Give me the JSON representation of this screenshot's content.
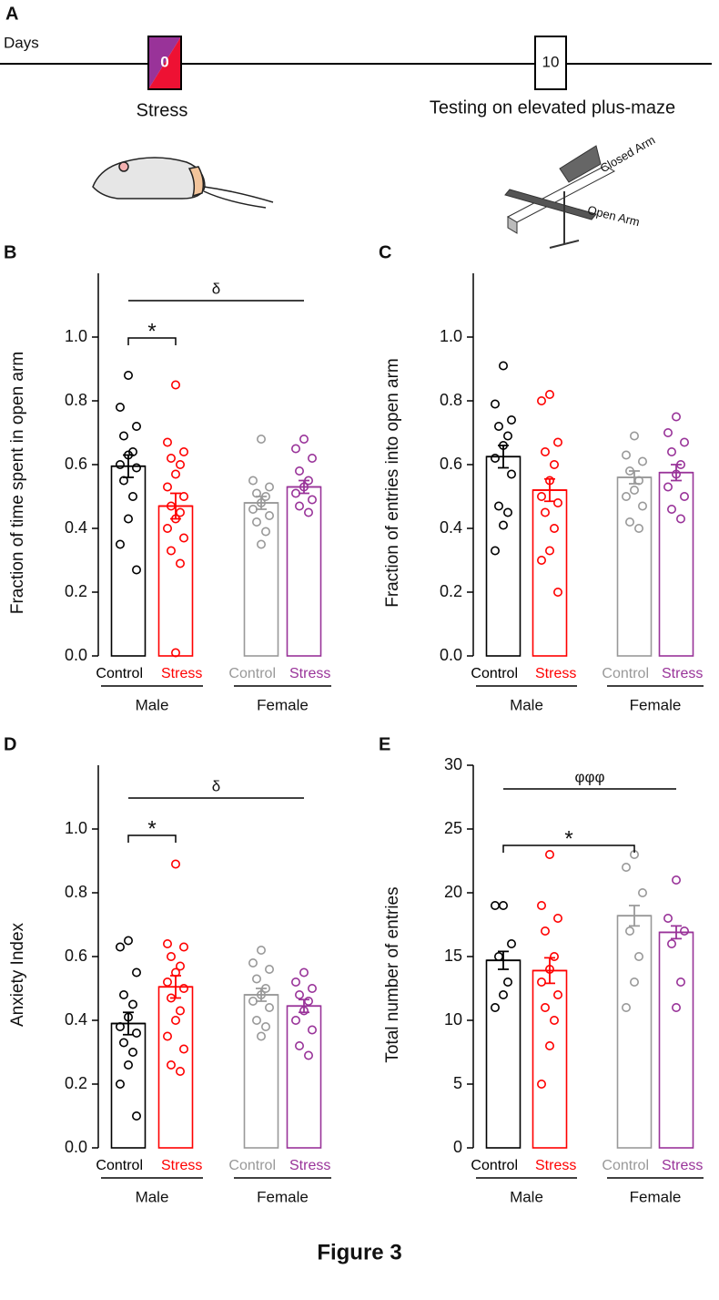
{
  "panel_a": {
    "label": "A",
    "axis_label": "Days",
    "day_start": "0",
    "day_test": "10",
    "stress_label": "Stress",
    "test_label": "Testing on elevated plus-maze",
    "closed_arm": "Closed Arm",
    "open_arm": "Open Arm"
  },
  "figure_title": "Figure 3",
  "chart_data": [
    {
      "type": "bar",
      "panel": "B",
      "ylabel": "Fraction of time spent in open arm",
      "categories": [
        "Control",
        "Stress",
        "Control",
        "Stress"
      ],
      "groups": [
        "Male",
        "Female"
      ],
      "colors": [
        "#000000",
        "#ff0000",
        "#999999",
        "#993399"
      ],
      "values": [
        0.595,
        0.47,
        0.48,
        0.53
      ],
      "errors": [
        0.035,
        0.04,
        0.02,
        0.02
      ],
      "points": [
        [
          0.88,
          0.78,
          0.72,
          0.69,
          0.64,
          0.63,
          0.6,
          0.59,
          0.55,
          0.5,
          0.43,
          0.35,
          0.27
        ],
        [
          0.85,
          0.67,
          0.64,
          0.62,
          0.6,
          0.57,
          0.53,
          0.5,
          0.47,
          0.45,
          0.43,
          0.4,
          0.37,
          0.33,
          0.29,
          0.01
        ],
        [
          0.68,
          0.55,
          0.53,
          0.51,
          0.5,
          0.48,
          0.46,
          0.44,
          0.42,
          0.39,
          0.35
        ],
        [
          0.68,
          0.65,
          0.62,
          0.58,
          0.55,
          0.53,
          0.51,
          0.49,
          0.47,
          0.45
        ]
      ],
      "ylim": [
        0,
        1.2
      ],
      "yticks": [
        {
          "value": 0,
          "label": "0.0"
        },
        0.2,
        0.4,
        0.6,
        0.8,
        {
          "value": 1,
          "label": "1.0"
        }
      ],
      "annotations": [
        {
          "text": "δ"
        },
        {
          "text": "*"
        }
      ]
    },
    {
      "type": "bar",
      "panel": "C",
      "ylabel": "Fraction of entries into open arm",
      "categories": [
        "Control",
        "Stress",
        "Control",
        "Stress"
      ],
      "groups": [
        "Male",
        "Female"
      ],
      "colors": [
        "#000000",
        "#ff0000",
        "#999999",
        "#993399"
      ],
      "values": [
        0.625,
        0.52,
        0.56,
        0.575
      ],
      "errors": [
        0.035,
        0.035,
        0.02,
        0.025
      ],
      "points": [
        [
          0.91,
          0.79,
          0.74,
          0.72,
          0.69,
          0.66,
          0.62,
          0.57,
          0.47,
          0.45,
          0.41,
          0.33
        ],
        [
          0.82,
          0.8,
          0.67,
          0.64,
          0.6,
          0.55,
          0.5,
          0.48,
          0.45,
          0.4,
          0.33,
          0.3,
          0.2
        ],
        [
          0.69,
          0.63,
          0.61,
          0.58,
          0.55,
          0.52,
          0.5,
          0.47,
          0.42,
          0.4
        ],
        [
          0.75,
          0.7,
          0.67,
          0.64,
          0.6,
          0.57,
          0.53,
          0.5,
          0.46,
          0.43
        ]
      ],
      "ylim": [
        0,
        1.2
      ],
      "yticks": [
        {
          "value": 0,
          "label": "0.0"
        },
        0.2,
        0.4,
        0.6,
        0.8,
        {
          "value": 1,
          "label": "1.0"
        }
      ],
      "annotations": []
    },
    {
      "type": "bar",
      "panel": "D",
      "ylabel": "Anxiety Index",
      "categories": [
        "Control",
        "Stress",
        "Control",
        "Stress"
      ],
      "groups": [
        "Male",
        "Female"
      ],
      "colors": [
        "#000000",
        "#ff0000",
        "#999999",
        "#993399"
      ],
      "values": [
        0.39,
        0.505,
        0.48,
        0.445
      ],
      "errors": [
        0.035,
        0.035,
        0.02,
        0.02
      ],
      "points": [
        [
          0.65,
          0.63,
          0.55,
          0.48,
          0.45,
          0.41,
          0.38,
          0.36,
          0.33,
          0.3,
          0.26,
          0.2,
          0.1
        ],
        [
          0.89,
          0.64,
          0.63,
          0.6,
          0.57,
          0.55,
          0.52,
          0.5,
          0.47,
          0.43,
          0.4,
          0.35,
          0.31,
          0.26,
          0.24
        ],
        [
          0.62,
          0.58,
          0.56,
          0.53,
          0.5,
          0.48,
          0.46,
          0.44,
          0.4,
          0.38,
          0.35
        ],
        [
          0.55,
          0.52,
          0.5,
          0.48,
          0.46,
          0.43,
          0.4,
          0.37,
          0.32,
          0.29
        ]
      ],
      "ylim": [
        0,
        1.2
      ],
      "yticks": [
        {
          "value": 0,
          "label": "0.0"
        },
        0.2,
        0.4,
        0.6,
        0.8,
        {
          "value": 1,
          "label": "1.0"
        }
      ],
      "annotations": [
        {
          "text": "δ"
        },
        {
          "text": "*"
        }
      ]
    },
    {
      "type": "bar",
      "panel": "E",
      "ylabel": "Total number of entries",
      "categories": [
        "Control",
        "Stress",
        "Control",
        "Stress"
      ],
      "groups": [
        "Male",
        "Female"
      ],
      "colors": [
        "#000000",
        "#ff0000",
        "#999999",
        "#993399"
      ],
      "values": [
        14.7,
        13.9,
        18.2,
        16.9
      ],
      "errors": [
        0.7,
        1.0,
        0.8,
        0.5
      ],
      "points": [
        [
          19,
          19,
          16,
          15,
          13,
          12,
          11
        ],
        [
          23,
          19,
          18,
          17,
          15,
          14,
          13,
          12,
          11,
          10,
          8,
          5
        ],
        [
          23,
          22,
          20,
          17,
          15,
          13,
          11
        ],
        [
          21,
          18,
          17,
          16,
          13,
          11
        ]
      ],
      "ylim": [
        0,
        30
      ],
      "yticks": [
        0,
        5,
        10,
        15,
        20,
        25,
        30
      ],
      "annotations": [
        {
          "text": "φφφ"
        },
        {
          "text": "*"
        }
      ]
    }
  ]
}
